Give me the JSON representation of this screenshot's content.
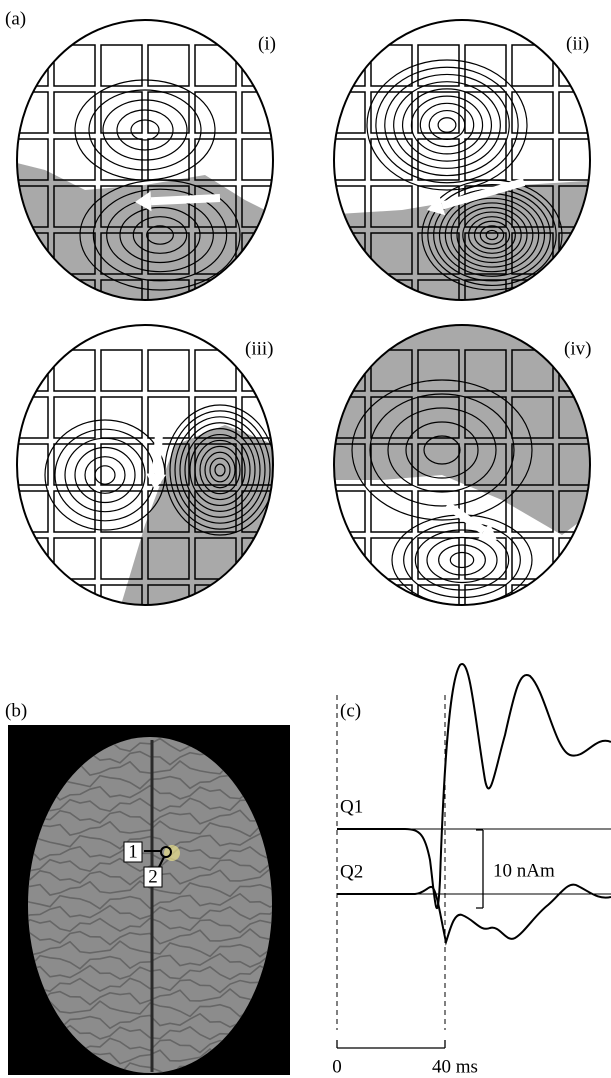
{
  "figure": {
    "panel_labels": {
      "a": "(a)",
      "b": "(b)",
      "c": "(c)"
    },
    "maps": [
      "(i)",
      "(ii)",
      "(iii)",
      "(iv)"
    ],
    "brain_markers": [
      "1",
      "2"
    ],
    "traces": [
      "Q1",
      "Q2"
    ],
    "scale_bar": "10 nAm",
    "time_axis": [
      "0",
      "40 ms"
    ]
  }
}
